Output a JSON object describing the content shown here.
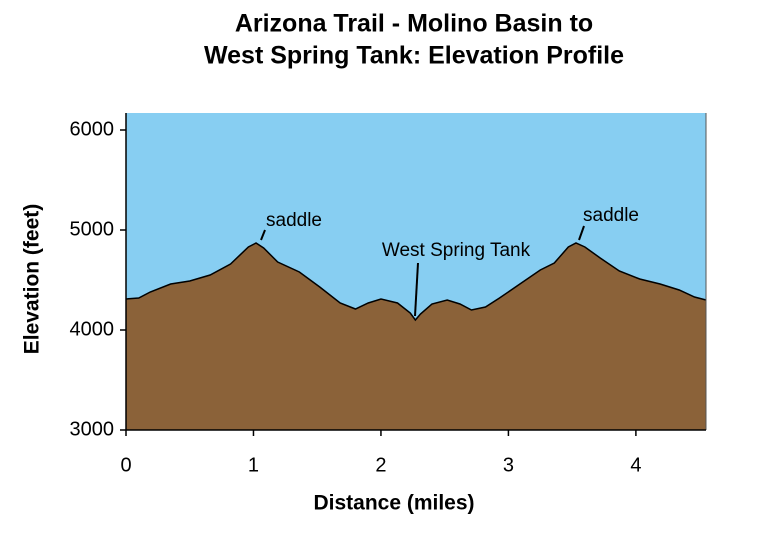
{
  "chart_data": {
    "type": "area",
    "title": [
      "Arizona Trail - Molino Basin to",
      "West Spring Tank: Elevation Profile"
    ],
    "x_label": "Distance (miles)",
    "y_label": "Elevation (feet)",
    "x": [
      0,
      0.1,
      0.19,
      0.35,
      0.5,
      0.66,
      0.82,
      0.96,
      1.02,
      1.08,
      1.19,
      1.36,
      1.52,
      1.68,
      1.8,
      1.9,
      2.0,
      2.13,
      2.23,
      2.27,
      2.31,
      2.4,
      2.52,
      2.62,
      2.71,
      2.82,
      2.93,
      3.09,
      3.25,
      3.36,
      3.47,
      3.53,
      3.6,
      3.72,
      3.87,
      4.03,
      4.19,
      4.34,
      4.46,
      4.55
    ],
    "values": [
      4310,
      4320,
      4380,
      4460,
      4490,
      4550,
      4660,
      4830,
      4870,
      4820,
      4680,
      4580,
      4430,
      4270,
      4210,
      4270,
      4310,
      4270,
      4170,
      4100,
      4160,
      4260,
      4300,
      4260,
      4200,
      4230,
      4320,
      4460,
      4600,
      4670,
      4830,
      4870,
      4830,
      4720,
      4590,
      4510,
      4460,
      4400,
      4330,
      4300
    ],
    "color": "#8b6239",
    "background": "#87cef2",
    "xlim": [
      0,
      4.55
    ],
    "xticks": [
      0,
      1,
      2,
      3,
      4
    ],
    "ylim": [
      3000,
      6170
    ],
    "yticks": [
      3000,
      4000,
      5000,
      6000
    ],
    "annotations": [
      "saddle",
      "West Spring Tank",
      "saddle"
    ]
  }
}
